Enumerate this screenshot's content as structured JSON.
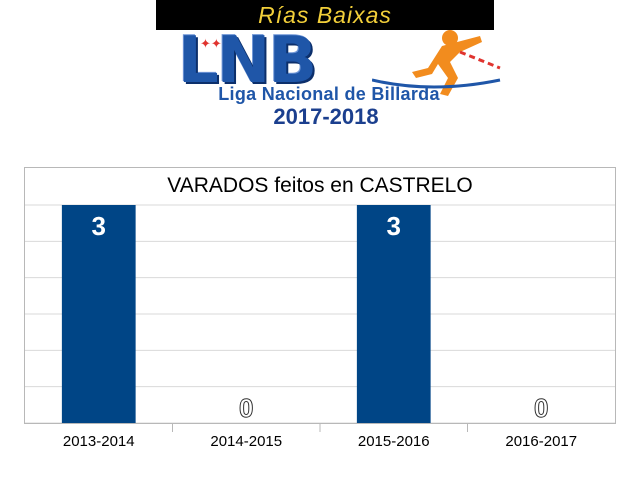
{
  "logo": {
    "banner_text": "Rías Baixas",
    "acronym": "LNB",
    "subtitle": "Liga Nacional de Billarda",
    "season": "2017-2018"
  },
  "colors": {
    "bar": "#004586",
    "gridline": "#d9d9d9",
    "label_on_bar": "#ffffff",
    "label_zero": "#ffffff",
    "label_zero_outline": "#333333",
    "logo_blue": "#1f56a8",
    "logo_orange": "#f28c1e"
  },
  "chart_data": {
    "type": "bar",
    "title": "VARADOS feitos en CASTRELO",
    "categories": [
      "2013-2014",
      "2014-2015",
      "2015-2016",
      "2016-2017"
    ],
    "values": [
      3,
      0,
      3,
      0
    ],
    "data_labels": [
      "3",
      "0",
      "3",
      "0"
    ],
    "ylim": [
      0,
      3
    ],
    "grid": true,
    "legend": "none"
  }
}
